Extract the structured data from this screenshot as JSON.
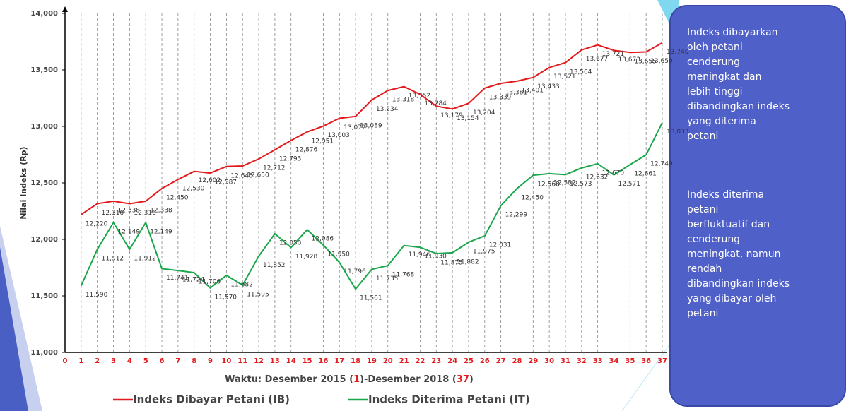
{
  "chart_data": {
    "type": "line",
    "y_label": "Nilai Indeks (Rp)",
    "x_label_parts": [
      "Waktu: Desember 2015 (",
      "1",
      ")-Desember 2018 (",
      "37",
      ")"
    ],
    "x": [
      1,
      2,
      3,
      4,
      5,
      6,
      7,
      8,
      9,
      10,
      11,
      12,
      13,
      14,
      15,
      16,
      17,
      18,
      19,
      20,
      21,
      22,
      23,
      24,
      25,
      26,
      27,
      28,
      29,
      30,
      31,
      32,
      33,
      34,
      35,
      36,
      37
    ],
    "xlim": [
      0,
      37
    ],
    "xticks": [
      0,
      1,
      2,
      3,
      4,
      5,
      6,
      7,
      8,
      9,
      10,
      11,
      12,
      13,
      14,
      15,
      16,
      17,
      18,
      19,
      20,
      21,
      22,
      23,
      24,
      25,
      26,
      27,
      28,
      29,
      30,
      31,
      32,
      33,
      34,
      35,
      36,
      37
    ],
    "ylim": [
      11000,
      14000
    ],
    "yticks": [
      {
        "value": 11000,
        "label": "11,000"
      },
      {
        "value": 11500,
        "label": "11,500"
      },
      {
        "value": 12000,
        "label": "12,000"
      },
      {
        "value": 12500,
        "label": "12,500"
      },
      {
        "value": 13000,
        "label": "13,000"
      },
      {
        "value": 13500,
        "label": "13,500"
      },
      {
        "value": 14000,
        "label": "14,000"
      }
    ],
    "grid": true,
    "series": [
      {
        "name": "Indeks Dibayar Petani (IB)",
        "color": "#e31a1c",
        "values": [
          12220,
          12316,
          12338,
          12316,
          12338,
          12450,
          12530,
          12602,
          12587,
          12645,
          12650,
          12712,
          12793,
          12876,
          12951,
          13003,
          13072,
          13089,
          13234,
          13318,
          13352,
          13284,
          13179,
          13154,
          13204,
          13339,
          13381,
          13401,
          13433,
          13521,
          13564,
          13677,
          13721,
          13673,
          13655,
          13659,
          13740
        ],
        "value_labels": [
          "12,220",
          "12,316",
          "12,338",
          "12,316",
          "12,338",
          "12,450",
          "12,530",
          "12,602",
          "12,587",
          "12,645",
          "12,650",
          "12,712",
          "12,793",
          "12,876",
          "12,951",
          "13,003",
          "13,072",
          "13,089",
          "13,234",
          "13,318",
          "13,352",
          "13,284",
          "13,179",
          "13,154",
          "13,204",
          "13,339",
          "13,381",
          "13,401",
          "13,433",
          "13,521",
          "13,564",
          "13,677",
          "13,721",
          "13,673",
          "13,655",
          "13,659",
          "13,740"
        ]
      },
      {
        "name": "Indeks Diterima Petani (IT)",
        "color": "#1aa64a",
        "values": [
          11590,
          11912,
          12149,
          11912,
          12149,
          11741,
          11724,
          11706,
          11570,
          11682,
          11595,
          11852,
          12050,
          11928,
          12086,
          11950,
          11796,
          11561,
          11735,
          11768,
          11946,
          11930,
          11875,
          11882,
          11975,
          12031,
          12299,
          12450,
          12568,
          12582,
          12573,
          12632,
          12670,
          12571,
          12661,
          12749,
          13033
        ],
        "value_labels": [
          "11,590",
          "11,912",
          "12,149",
          "11,912",
          "12,149",
          "11,741",
          "11,724",
          "11,706",
          "11,570",
          "11,682",
          "11,595",
          "11,852",
          "12,050",
          "11,928",
          "12,086",
          "11,950",
          "11,796",
          "11,561",
          "11,735",
          "11,768",
          "11,946",
          "11,930",
          "11,875",
          "11,882",
          "11,975",
          "12,031",
          "12,299",
          "12,450",
          "12,568",
          "12,582",
          "12,573",
          "12,632",
          "12,670",
          "12,571",
          "12,661",
          "12,749",
          "13,033"
        ]
      }
    ],
    "note_lines": [
      [
        "Indeks dibayarkan",
        "oleh petani",
        "cenderung",
        "meningkat dan",
        "lebih tinggi",
        "dibandingkan indeks",
        "yang diterima",
        "petani"
      ],
      [
        "Indeks diterima",
        "petani",
        "berfluktuatif dan",
        "cenderung",
        "meningkat, namun",
        "rendah",
        "dibandingkan indeks",
        "yang dibayar oleh",
        "petani"
      ]
    ]
  }
}
